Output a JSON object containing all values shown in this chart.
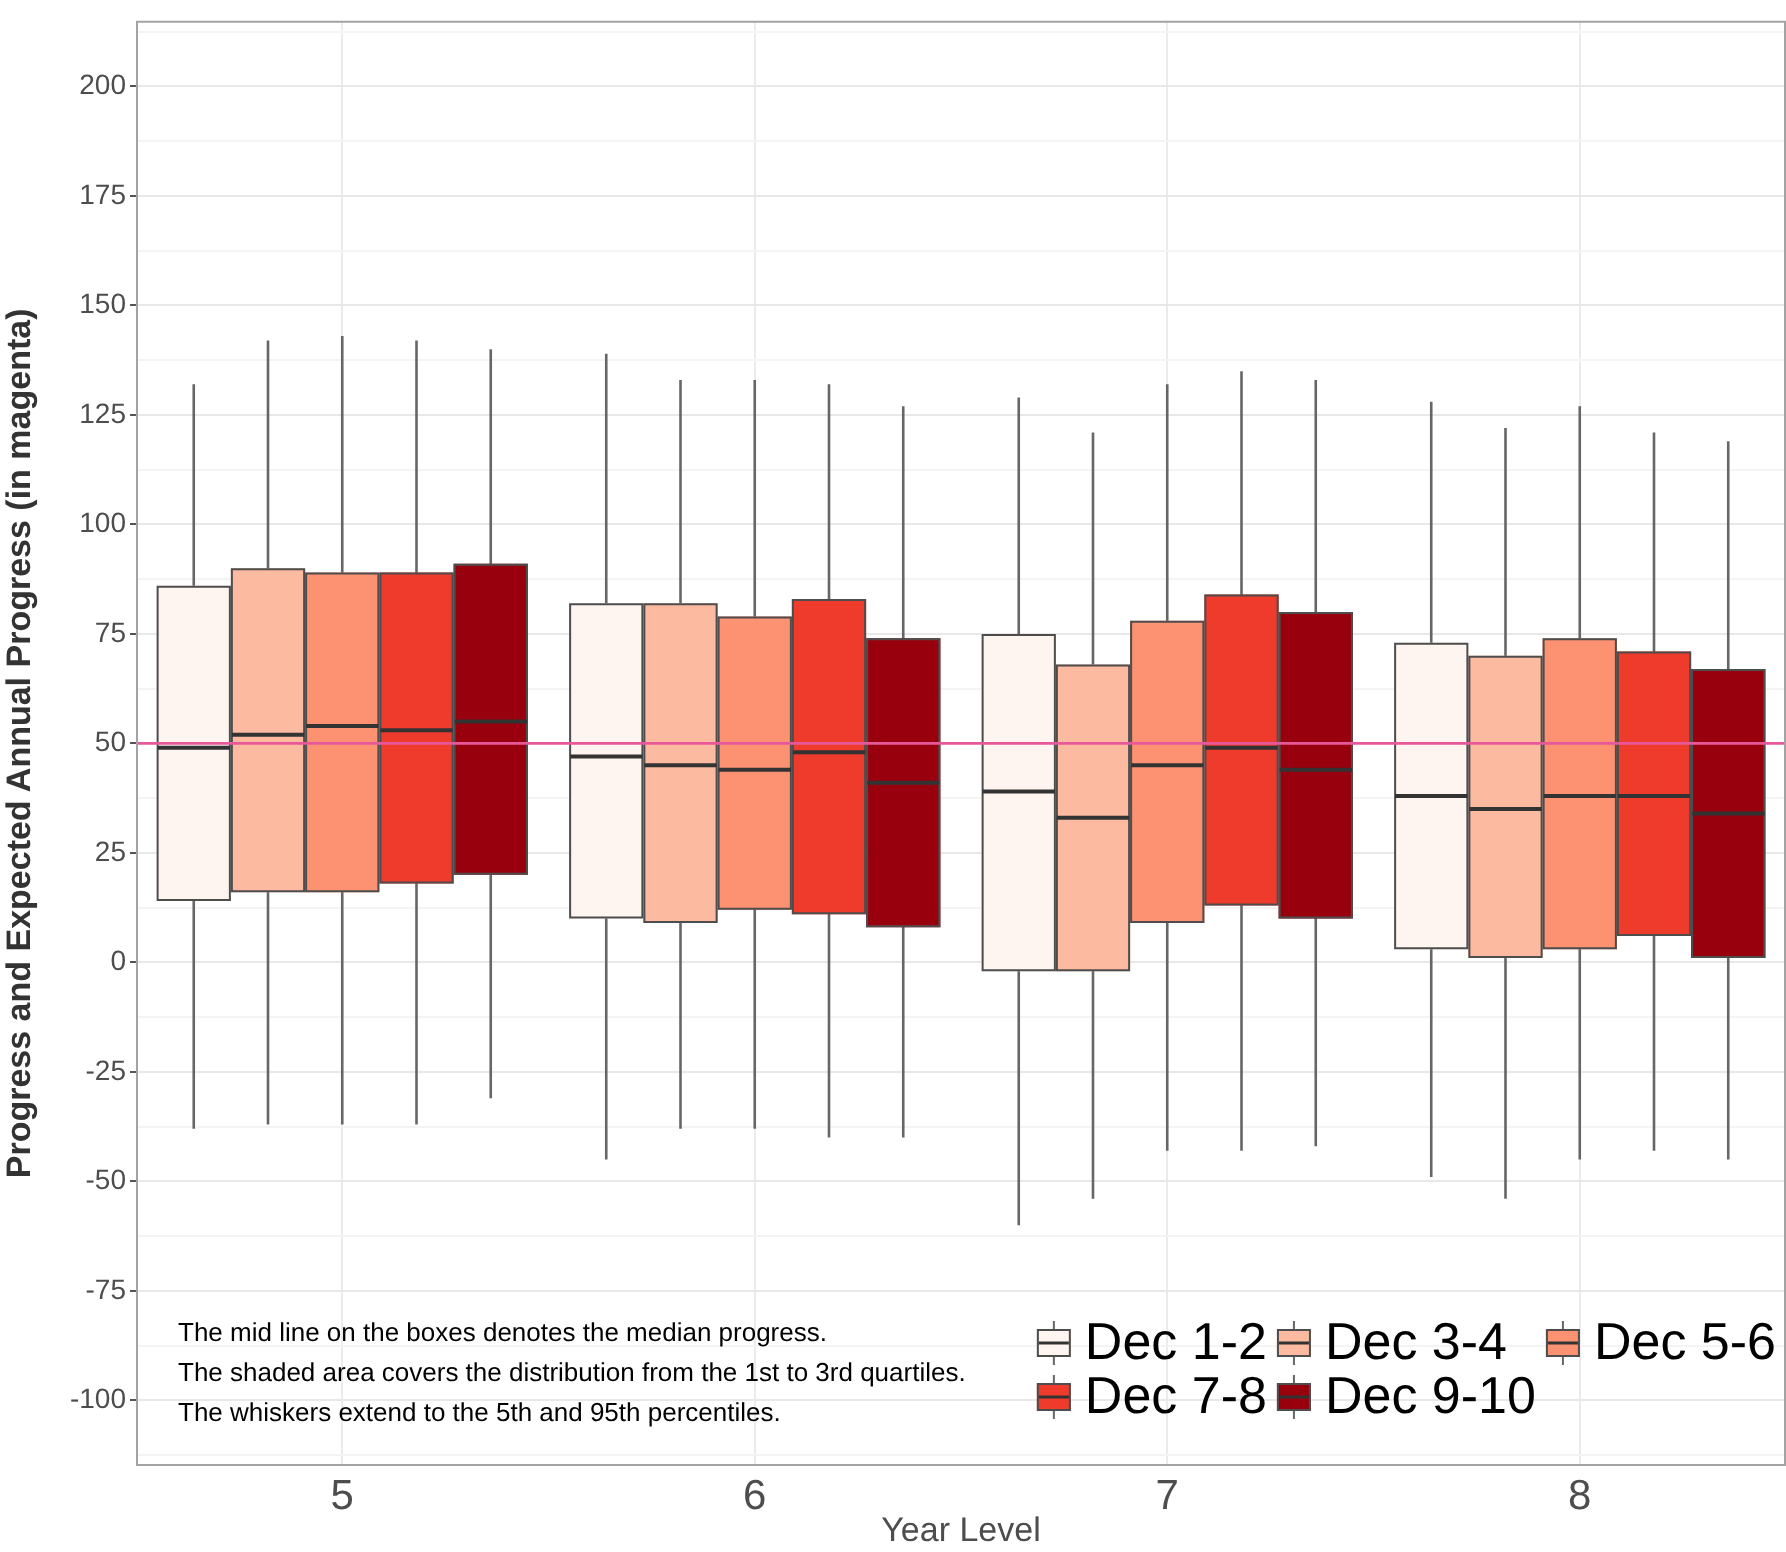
{
  "chart_data": {
    "type": "box",
    "xlabel": "Year Level",
    "ylabel": "Progress and Expected Annual Progress (in magenta)",
    "categories": [
      "5",
      "6",
      "7",
      "8"
    ],
    "series": [
      {
        "name": "Dec 1-2",
        "color": "#fff5f0",
        "boxes": [
          {
            "low": -38,
            "q1": 14,
            "median": 49,
            "q3": 86,
            "high": 132
          },
          {
            "low": -45,
            "q1": 10,
            "median": 47,
            "q3": 82,
            "high": 139
          },
          {
            "low": -60,
            "q1": -2,
            "median": 39,
            "q3": 75,
            "high": 129
          },
          {
            "low": -49,
            "q1": 3,
            "median": 38,
            "q3": 73,
            "high": 128
          }
        ]
      },
      {
        "name": "Dec 3-4",
        "color": "#fcbba1",
        "boxes": [
          {
            "low": -37,
            "q1": 16,
            "median": 52,
            "q3": 90,
            "high": 142
          },
          {
            "low": -38,
            "q1": 9,
            "median": 45,
            "q3": 82,
            "high": 133
          },
          {
            "low": -54,
            "q1": -2,
            "median": 33,
            "q3": 68,
            "high": 121
          },
          {
            "low": -54,
            "q1": 1,
            "median": 35,
            "q3": 70,
            "high": 122
          }
        ]
      },
      {
        "name": "Dec 5-6",
        "color": "#fc9272",
        "boxes": [
          {
            "low": -37,
            "q1": 16,
            "median": 54,
            "q3": 89,
            "high": 143
          },
          {
            "low": -38,
            "q1": 12,
            "median": 44,
            "q3": 79,
            "high": 133
          },
          {
            "low": -43,
            "q1": 9,
            "median": 45,
            "q3": 78,
            "high": 132
          },
          {
            "low": -45,
            "q1": 3,
            "median": 38,
            "q3": 74,
            "high": 127
          }
        ]
      },
      {
        "name": "Dec 7-8",
        "color": "#ef3b2c",
        "boxes": [
          {
            "low": -37,
            "q1": 18,
            "median": 53,
            "q3": 89,
            "high": 142
          },
          {
            "low": -40,
            "q1": 11,
            "median": 48,
            "q3": 83,
            "high": 132
          },
          {
            "low": -43,
            "q1": 13,
            "median": 49,
            "q3": 84,
            "high": 135
          },
          {
            "low": -43,
            "q1": 6,
            "median": 38,
            "q3": 71,
            "high": 121
          }
        ]
      },
      {
        "name": "Dec 9-10",
        "color": "#99000d",
        "boxes": [
          {
            "low": -31,
            "q1": 20,
            "median": 55,
            "q3": 91,
            "high": 140
          },
          {
            "low": -40,
            "q1": 8,
            "median": 41,
            "q3": 74,
            "high": 127
          },
          {
            "low": -42,
            "q1": 10,
            "median": 44,
            "q3": 80,
            "high": 133
          },
          {
            "low": -45,
            "q1": 1,
            "median": 34,
            "q3": 67,
            "high": 119
          }
        ]
      }
    ],
    "ylim": [
      -115,
      215
    ],
    "yticks": [
      {
        "value": -112.5,
        "label": null
      },
      -100,
      {
        "value": -87.5,
        "label": null
      },
      -75,
      {
        "value": -62.5,
        "label": null
      },
      -50,
      {
        "value": -37.5,
        "label": null
      },
      -25,
      {
        "value": -12.5,
        "label": null
      },
      0,
      {
        "value": 12.5,
        "label": null
      },
      25,
      {
        "value": 37.5,
        "label": null
      },
      50,
      {
        "value": 62.5,
        "label": null
      },
      75,
      {
        "value": 87.5,
        "label": null
      },
      100,
      {
        "value": 112.5,
        "label": null
      },
      125,
      {
        "value": 137.5,
        "label": null
      },
      150,
      {
        "value": 162.5,
        "label": null
      },
      175,
      {
        "value": 187.5,
        "label": null
      },
      200,
      {
        "value": 212.5,
        "label": null
      }
    ],
    "grid": true,
    "legend": "bottom right",
    "ref_lines": [
      {
        "axis": "y",
        "value": 50,
        "color": "#e7589b"
      }
    ],
    "annotations": [
      "The mid line on the boxes denotes the median progress.",
      "The shaded area covers the distribution from the 1st to 3rd quartiles.",
      "The whiskers extend to the 5th and 95th percentiles."
    ]
  }
}
